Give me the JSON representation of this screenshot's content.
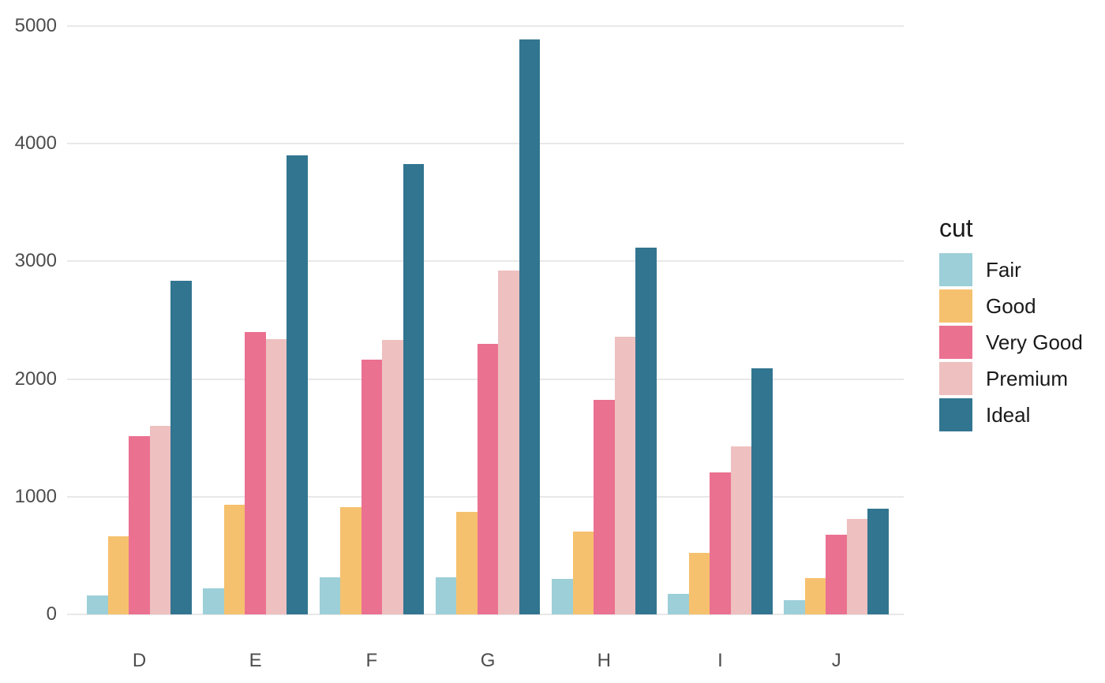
{
  "chart_data": {
    "type": "bar",
    "subtype": "grouped",
    "title": "",
    "xlabel": "",
    "ylabel": "",
    "categories": [
      "D",
      "E",
      "F",
      "G",
      "H",
      "I",
      "J"
    ],
    "series": [
      {
        "name": "Fair",
        "color": "#9CCFD8",
        "values": [
          163,
          224,
          312,
          314,
          303,
          175,
          119
        ]
      },
      {
        "name": "Good",
        "color": "#F6C16E",
        "values": [
          662,
          933,
          909,
          871,
          702,
          522,
          307
        ]
      },
      {
        "name": "Very Good",
        "color": "#EB7191",
        "values": [
          1513,
          2400,
          2164,
          2299,
          1824,
          1204,
          678
        ]
      },
      {
        "name": "Premium",
        "color": "#EEC0C0",
        "values": [
          1603,
          2337,
          2331,
          2924,
          2360,
          1428,
          808
        ]
      },
      {
        "name": "Ideal",
        "color": "#327590",
        "values": [
          2834,
          3903,
          3826,
          4884,
          3115,
          2093,
          896
        ]
      }
    ],
    "y_ticks": [
      0,
      1000,
      2000,
      3000,
      4000,
      5000
    ],
    "ylim": [
      0,
      5220
    ],
    "grid": "horizontal-major-only",
    "legend": {
      "title": "cut",
      "position": "right"
    }
  },
  "colors": {
    "background": "#FFFFFF",
    "gridline": "#E8E8E8",
    "axis_text": "#4D4D4D",
    "legend_text": "#1A1A1A"
  }
}
